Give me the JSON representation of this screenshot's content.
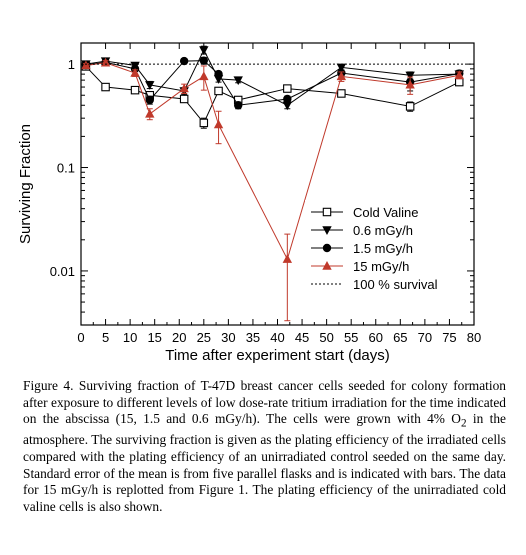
{
  "chart_data": {
    "type": "line",
    "xlabel": "Time after experiment start (days)",
    "ylabel": "Surviving Fraction",
    "xlim": [
      0,
      80
    ],
    "ylim": [
      0.003,
      1.6
    ],
    "yscale": "log",
    "xticks": [
      0,
      5,
      10,
      15,
      20,
      25,
      30,
      35,
      40,
      45,
      50,
      55,
      60,
      65,
      70,
      75,
      80
    ],
    "yticks": [
      {
        "value": 1,
        "label": "1"
      },
      {
        "value": 0.1,
        "label": "0.1"
      },
      {
        "value": 0.01,
        "label": "0.01"
      }
    ],
    "legend_position": "lower-right",
    "series": [
      {
        "name": "Cold Valine",
        "color": "#000000",
        "marker": "square-open",
        "points": [
          [
            1,
            0.95
          ],
          [
            5,
            0.6
          ],
          [
            11,
            0.56
          ],
          [
            14,
            0.5
          ],
          [
            21,
            0.46
          ],
          [
            25,
            0.27
          ],
          [
            28,
            0.55
          ],
          [
            32,
            0.45
          ],
          [
            42,
            0.58
          ],
          [
            53,
            0.52
          ],
          [
            67,
            0.39
          ],
          [
            77,
            0.67
          ]
        ],
        "err": [
          0.04,
          0.03,
          0.03,
          0.03,
          0.03,
          0.03,
          0.04,
          0.03,
          0.03,
          0.03,
          0.04,
          0.05
        ]
      },
      {
        "name": "0.6 mGy/h",
        "color": "#000000",
        "marker": "triangle-down",
        "points": [
          [
            1,
            1.0
          ],
          [
            5,
            1.07
          ],
          [
            11,
            0.97
          ],
          [
            14,
            0.63
          ],
          [
            21,
            0.55
          ],
          [
            25,
            1.37
          ],
          [
            28,
            0.72
          ],
          [
            32,
            0.7
          ],
          [
            42,
            0.4
          ],
          [
            53,
            0.93
          ],
          [
            67,
            0.78
          ],
          [
            77,
            0.8
          ]
        ],
        "err": [
          0.04,
          0.05,
          0.05,
          0.05,
          0.04,
          0.12,
          0.05,
          0.04,
          0.03,
          0.06,
          0.06,
          0.05
        ]
      },
      {
        "name": "1.5 mGy/h",
        "color": "#000000",
        "marker": "circle",
        "points": [
          [
            1,
            0.98
          ],
          [
            5,
            1.04
          ],
          [
            11,
            0.9
          ],
          [
            14,
            0.45
          ],
          [
            21,
            1.07
          ],
          [
            25,
            1.08
          ],
          [
            28,
            0.8
          ],
          [
            32,
            0.4
          ],
          [
            42,
            0.46
          ],
          [
            53,
            0.82
          ],
          [
            67,
            0.67
          ],
          [
            77,
            0.81
          ]
        ],
        "err": [
          0.04,
          0.05,
          0.05,
          0.04,
          0.06,
          0.08,
          0.05,
          0.03,
          0.03,
          0.06,
          0.12,
          0.06
        ]
      },
      {
        "name": "15 mGy/h",
        "color": "#c0392b",
        "marker": "triangle-up",
        "points": [
          [
            1,
            0.97
          ],
          [
            5,
            1.03
          ],
          [
            11,
            0.82
          ],
          [
            14,
            0.33
          ],
          [
            21,
            0.58
          ],
          [
            25,
            0.76
          ],
          [
            28,
            0.26
          ],
          [
            42,
            0.013
          ],
          [
            53,
            0.76
          ],
          [
            67,
            0.63
          ],
          [
            77,
            0.78
          ]
        ],
        "err": [
          0.04,
          0.05,
          0.06,
          0.04,
          0.06,
          0.2,
          0.09,
          0.0097,
          0.08,
          0.12,
          0.06
        ]
      },
      {
        "name": "100 % survival",
        "color": "#000000",
        "style": "dotted",
        "points": [
          [
            0,
            1
          ],
          [
            80,
            1
          ]
        ]
      }
    ]
  },
  "caption": {
    "label": "Figure 4.",
    "text": " Surviving fraction of T-47D breast cancer cells seeded for colony formation after exposure to different levels of low dose-rate tritium irradiation for the time indicated on the abscissa (15, 1.5 and 0.6 mGy/h). The cells were grown with 4% O",
    "subscript": "2",
    "text_after": " in the atmosphere. The surviving fraction is given as the plating efficiency of the irradiated cells compared with the plating efficiency of an unirradiated control seeded on the same day. Standard error of the mean is from five parallel flasks and is indicated with bars. The data for 15 mGy/h is replotted from Figure 1. The plating efficiency of the unirradiated cold valine cells is also shown."
  }
}
